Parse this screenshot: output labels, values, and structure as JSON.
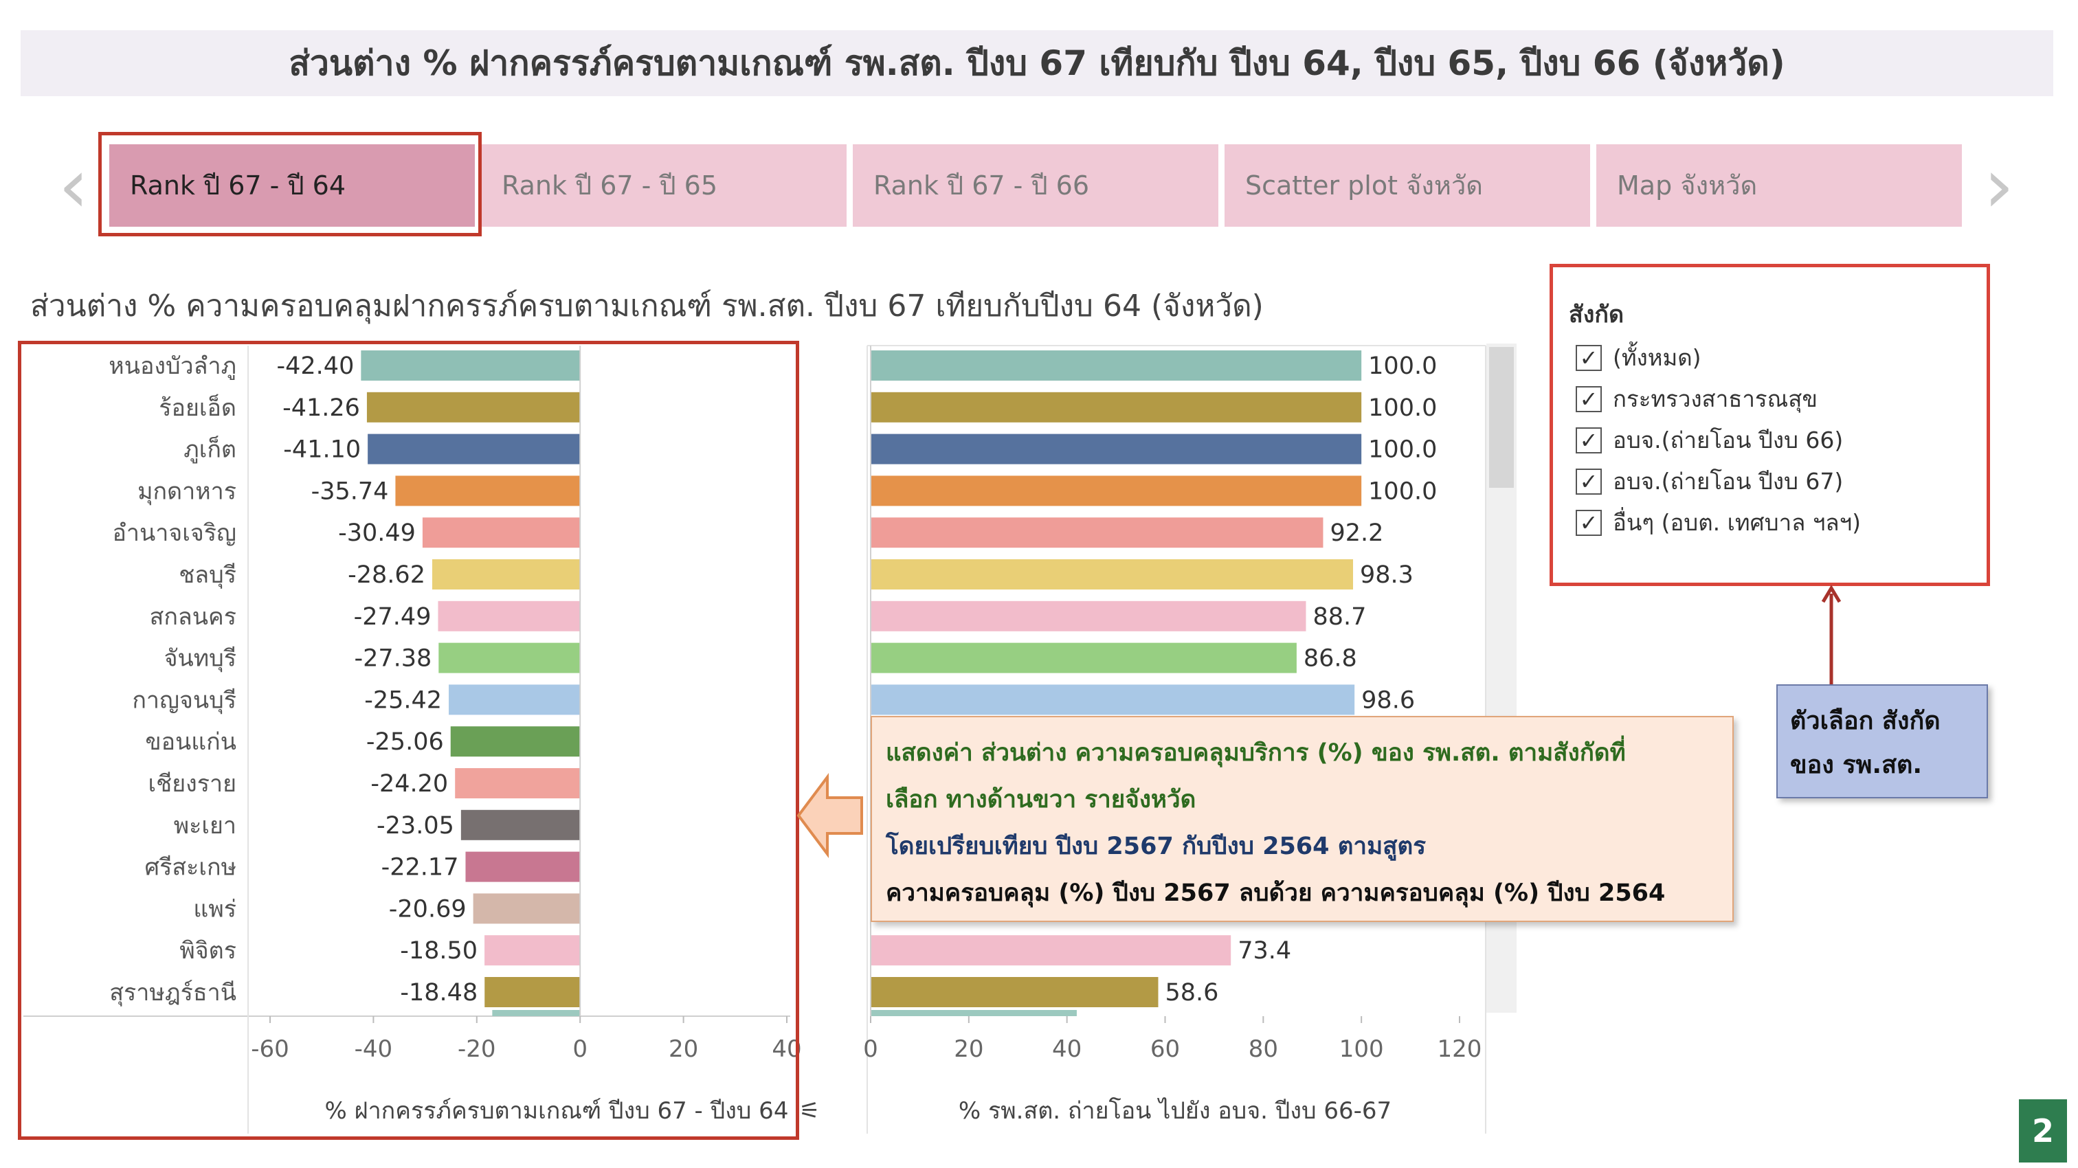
{
  "page": {
    "title": "ส่วนต่าง % ฝากครรภ์ครบตามเกณฑ์ รพ.สต. ปีงบ 67 เทียบกับ ปีงบ 64, ปีงบ 65, ปีงบ 66 (จังหวัด)",
    "page_number": "2"
  },
  "tabs": [
    {
      "label": "Rank ปี 67 - ปี 64",
      "active": true
    },
    {
      "label": "Rank ปี 67 - ปี 65",
      "active": false
    },
    {
      "label": "Rank ปี 67 - ปี 66",
      "active": false
    },
    {
      "label": "Scatter plot จังหวัด",
      "active": false
    },
    {
      "label": "Map จังหวัด",
      "active": false
    }
  ],
  "nav": {
    "prev_icon": "chevron-left-icon",
    "next_icon": "chevron-right-icon"
  },
  "chart_subtitle": "ส่วนต่าง % ความครอบคลุมฝากครรภ์ครบตามเกณฑ์ รพ.สต. ปีงบ 67 เทียบกับปีงบ 64 (จังหวัด)",
  "filter": {
    "title": "สังกัด",
    "options": [
      {
        "label": "(ทั้งหมด)",
        "checked": true
      },
      {
        "label": "กระทรวงสาธารณสุข",
        "checked": true
      },
      {
        "label": "อบจ.(ถ่ายโอน ปีงบ 66)",
        "checked": true
      },
      {
        "label": "อบจ.(ถ่ายโอน ปีงบ 67)",
        "checked": true
      },
      {
        "label": "อื่นๆ (อบต. เทศบาล ฯลฯ)",
        "checked": true
      }
    ]
  },
  "filter_note": {
    "line1": "ตัวเลือก สังกัด",
    "line2": "ของ รพ.สต."
  },
  "note": {
    "line1": "แสดงค่า ส่วนต่าง ความครอบคลุมบริการ (%) ของ รพ.สต. ตามสังกัดที่",
    "line2": "เลือก ทางด้านขวา รายจังหวัด",
    "line3": "โดยเปรียบเทียบ ปีงบ 2567 กับปีงบ 2564 ตามสูตร",
    "line4": "ความครอบคลุม (%) ปีงบ 2567 ลบด้วย ความครอบคลุม (%) ปีงบ 2564"
  },
  "colors": {
    "accent_red": "#c0392b",
    "note_text_green": "#2e6b1f",
    "note_text_blue": "#1f3a6b"
  },
  "chart_data": [
    {
      "type": "bar",
      "orientation": "horizontal",
      "categories": [
        "หนองบัวลำภู",
        "ร้อยเอ็ด",
        "ภูเก็ต",
        "มุกดาหาร",
        "อำนาจเจริญ",
        "ชลบุรี",
        "สกลนคร",
        "จันทบุรี",
        "กาญจนบุรี",
        "ขอนแก่น",
        "เชียงราย",
        "พะเยา",
        "ศรีสะเกษ",
        "แพร่",
        "พิจิตร",
        "สุราษฎร์ธานี"
      ],
      "values": [
        -42.4,
        -41.26,
        -41.1,
        -35.74,
        -30.49,
        -28.62,
        -27.49,
        -27.38,
        -25.42,
        -25.06,
        -24.2,
        -23.05,
        -22.17,
        -20.69,
        -18.5,
        -18.48
      ],
      "value_labels": [
        "-42.40",
        "-41.26",
        "-41.10",
        "-35.74",
        "-30.49",
        "-28.62",
        "-27.49",
        "-27.38",
        "-25.42",
        "-25.06",
        "-24.20",
        "-23.05",
        "-22.17",
        "-20.69",
        "-18.50",
        "-18.48"
      ],
      "bar_colors": [
        "#8fbfb5",
        "#b39a45",
        "#56729e",
        "#e5924a",
        "#ef9d98",
        "#e9cf76",
        "#f2bccb",
        "#97cf82",
        "#a9c8e6",
        "#6aa056",
        "#f0a39c",
        "#777070",
        "#c87791",
        "#d4b7aa",
        "#f2bccb",
        "#b39a45"
      ],
      "xlabel": "% ฝากครรภ์ครบตามเกณฑ์ ปีงบ 67 - ปีงบ 64",
      "xlim": [
        -60,
        40
      ],
      "xticks": [
        "-60",
        "-40",
        "-20",
        "0",
        "20",
        "40"
      ],
      "grid": false
    },
    {
      "type": "bar",
      "orientation": "horizontal",
      "categories": [
        "หนองบัวลำภู",
        "ร้อยเอ็ด",
        "ภูเก็ต",
        "มุกดาหาร",
        "อำนาจเจริญ",
        "ชลบุรี",
        "สกลนคร",
        "จันทบุรี",
        "กาญจนบุรี",
        "ขอนแก่น",
        "เชียงราย",
        "พะเยา",
        "ศรีสะเกษ",
        "แพร่",
        "พิจิตร",
        "สุราษฎร์ธานี"
      ],
      "values": [
        100.0,
        100.0,
        100.0,
        100.0,
        92.2,
        98.3,
        88.7,
        86.8,
        98.6,
        null,
        null,
        null,
        null,
        null,
        73.4,
        58.6
      ],
      "value_labels": [
        "100.0",
        "100.0",
        "100.0",
        "100.0",
        "92.2",
        "98.3",
        "88.7",
        "86.8",
        "98.6",
        "",
        "",
        "",
        "",
        "",
        "73.4",
        "58.6"
      ],
      "xlabel": "% รพ.สต. ถ่ายโอน ไปยัง อบจ. ปีงบ 66-67",
      "xlim": [
        0,
        120
      ],
      "xticks": [
        "0",
        "20",
        "40",
        "60",
        "80",
        "100",
        "120"
      ],
      "grid": false
    }
  ]
}
